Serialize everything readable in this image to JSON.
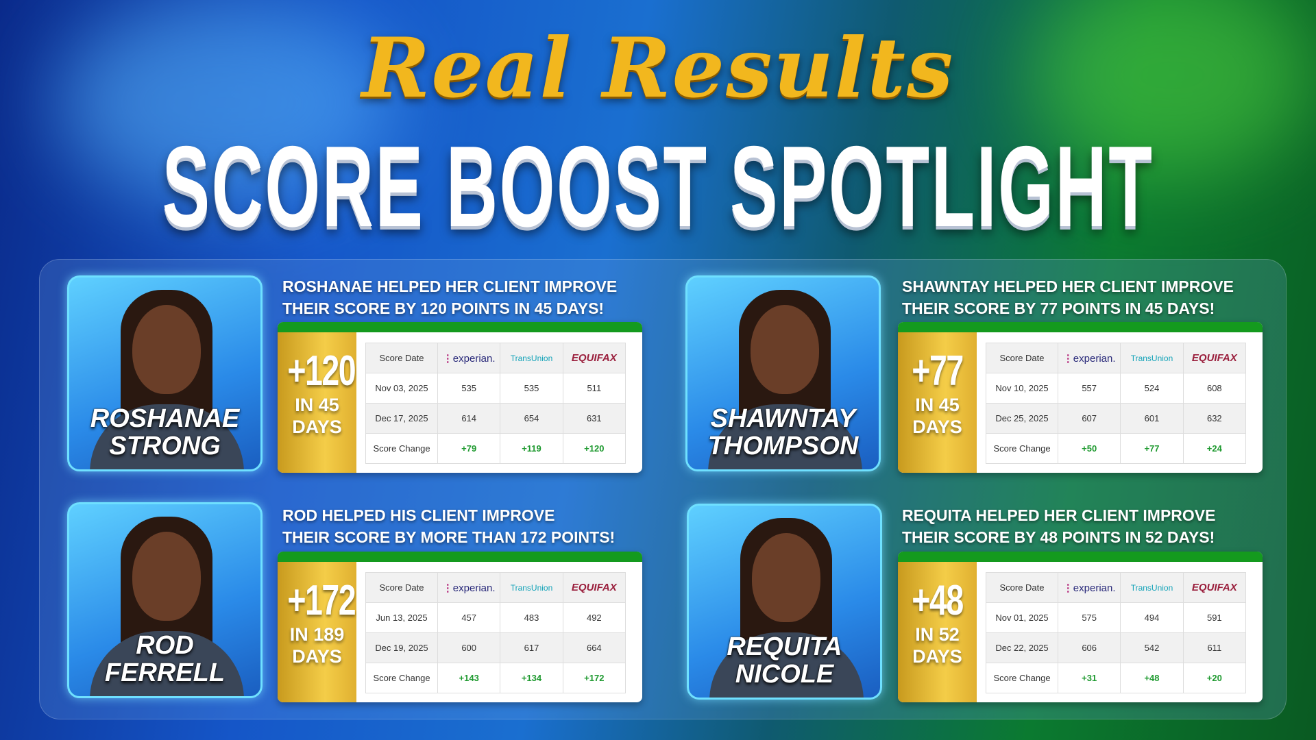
{
  "header": {
    "script_title": "Real Results",
    "title": "SCORE BOOST SPOTLIGHT"
  },
  "table_headers": {
    "date": "Score Date",
    "experian": "experian.",
    "transunion": "TransUnion",
    "equifax": "EQUIFAX",
    "change": "Score Change"
  },
  "colors": {
    "gold": "#f2b71e",
    "green": "#149a1e",
    "change_green": "#1f9a30"
  },
  "cards": [
    {
      "name_line1": "ROSHANAE",
      "name_line2": "STRONG",
      "headline_line1": "ROSHANAE HELPED HER CLIENT IMPROVE",
      "headline_line2": "THEIR SCORE BY 120 POINTS IN 45 DAYS!",
      "boost": "+120",
      "days_line1": "IN 45",
      "days_line2": "DAYS",
      "rows": [
        [
          "Nov 03, 2025",
          "535",
          "535",
          "511"
        ],
        [
          "Dec 17, 2025",
          "614",
          "654",
          "631"
        ]
      ],
      "changes": [
        "+79",
        "+119",
        "+120"
      ]
    },
    {
      "name_line1": "SHAWNTAY",
      "name_line2": "THOMPSON",
      "headline_line1": "SHAWNTAY HELPED HER CLIENT IMPROVE",
      "headline_line2": "THEIR SCORE BY 77 POINTS IN 45 DAYS!",
      "boost": "+77",
      "days_line1": "IN 45",
      "days_line2": "DAYS",
      "rows": [
        [
          "Nov 10, 2025",
          "557",
          "524",
          "608"
        ],
        [
          "Dec 25, 2025",
          "607",
          "601",
          "632"
        ]
      ],
      "changes": [
        "+50",
        "+77",
        "+24"
      ]
    },
    {
      "name_line1": "ROD",
      "name_line2": "FERRELL",
      "headline_line1": "ROD HELPED HIS CLIENT IMPROVE",
      "headline_line2": "THEIR SCORE BY MORE THAN 172 POINTS!",
      "boost": "+172",
      "days_line1": "IN 189",
      "days_line2": "DAYS",
      "rows": [
        [
          "Jun 13, 2025",
          "457",
          "483",
          "492"
        ],
        [
          "Dec 19, 2025",
          "600",
          "617",
          "664"
        ]
      ],
      "changes": [
        "+143",
        "+134",
        "+172"
      ]
    },
    {
      "name_line1": "REQUITA",
      "name_line2": "NICOLE",
      "headline_line1": "REQUITA HELPED HER CLIENT IMPROVE",
      "headline_line2": "THEIR SCORE BY 48 POINTS IN 52 DAYS!",
      "boost": "+48",
      "days_line1": "IN 52",
      "days_line2": "DAYS",
      "rows": [
        [
          "Nov 01, 2025",
          "575",
          "494",
          "591"
        ],
        [
          "Dec 22, 2025",
          "606",
          "542",
          "611"
        ]
      ],
      "changes": [
        "+31",
        "+48",
        "+20"
      ]
    }
  ]
}
